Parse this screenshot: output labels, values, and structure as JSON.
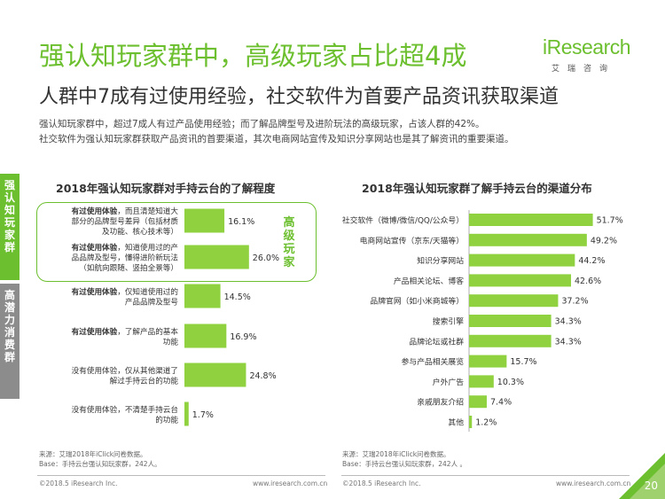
{
  "header": {
    "title_line1": "强认知玩家群中，高级玩家占比超4成",
    "title_line2": "人群中7成有过使用经验，社交软件为首要产品资讯获取渠道",
    "intro_lines": [
      "强认知玩家群中，超过7成人有过产品使用经验；而了解品牌型号及进阶玩法的高级玩家，占该人群的42%。",
      "社交软件为强认知玩家群获取产品资讯的首要渠道，其次电商网站宣传及知识分享网站也是其了解资讯的重要渠道。"
    ]
  },
  "logo": {
    "wordmark": "iResearch",
    "sub": "艾瑞咨询"
  },
  "side_tabs": [
    "强认知玩家群",
    "高潜力消费群"
  ],
  "highlight_label": "高级玩家",
  "chart_data": [
    {
      "type": "bar",
      "orientation": "horizontal",
      "title": "2018年强认知玩家群对手持云台的了解程度",
      "categories": [
        [
          {
            "b": "有过使用体验",
            "t": "，而且清楚知道大"
          },
          {
            "t": "部分的品牌型号差异（包括材质"
          },
          {
            "t": "及功能、核心技术等）"
          }
        ],
        [
          {
            "b": "有过使用体验",
            "t": "，知道使用过的产"
          },
          {
            "t": "品品牌及型号，懂得进阶新玩法"
          },
          {
            "t": "（如航向跟随、竖拍全景等）"
          }
        ],
        [
          {
            "b": "有过使用体验",
            "t": "，仅知道使用过的"
          },
          {
            "t": "产品品牌及型号"
          }
        ],
        [
          {
            "b": "有过使用体验",
            "t": "，了解产品的基本"
          },
          {
            "t": "功能"
          }
        ],
        [
          {
            "t": "没有使用体验，仅从其他渠道了"
          },
          {
            "t": "解过手持云台的功能"
          }
        ],
        [
          {
            "t": "没有使用体验，不清楚手持云台"
          },
          {
            "t": "的功能"
          }
        ]
      ],
      "values": [
        16.1,
        26.0,
        14.5,
        16.9,
        24.8,
        1.7
      ],
      "value_labels": [
        "16.1%",
        "26.0%",
        "14.5%",
        "16.9%",
        "24.8%",
        "1.7%"
      ],
      "unit": "%",
      "color": "#8fd13f"
    },
    {
      "type": "bar",
      "orientation": "horizontal",
      "title": "2018年强认知玩家群了解手持云台的渠道分布",
      "categories": [
        "社交软件（微博/微信/QQ/公众号）",
        "电商网站宣传（京东/天猫等）",
        "知识分享网站",
        "产品相关论坛、博客",
        "品牌官网（如小米商城等）",
        "搜索引擎",
        "品牌论坛或社群",
        "参与产品相关展览",
        "户外广告",
        "亲戚朋友介绍",
        "其他"
      ],
      "values": [
        51.7,
        49.2,
        44.2,
        42.6,
        37.2,
        34.3,
        34.3,
        15.7,
        10.3,
        7.4,
        1.2
      ],
      "value_labels": [
        "51.7%",
        "49.2%",
        "44.2%",
        "42.6%",
        "37.2%",
        "34.3%",
        "34.3%",
        "15.7%",
        "10.3%",
        "7.4%",
        "1.2%"
      ],
      "unit": "%",
      "color": "#8fd13f"
    }
  ],
  "sources": [
    [
      "来源：艾瑞2018年iClick问卷数据。",
      "Base：手持云台强认知玩家群，242人。"
    ],
    [
      "来源：艾瑞2018年iClick问卷数据。",
      "Base：手持云台强认知玩家群，242人 。"
    ]
  ],
  "footer": {
    "copyright": "©2018.5 iResearch Inc.",
    "url": "www.iresearch.com.cn",
    "page": "20"
  }
}
